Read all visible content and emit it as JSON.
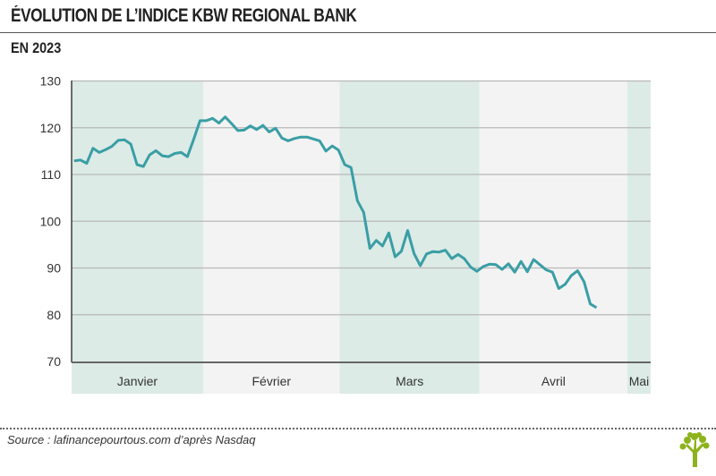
{
  "header": {
    "title": "ÉVOLUTION DE L’INDICE KBW REGIONAL BANK",
    "subtitle": "EN 2023"
  },
  "footer": {
    "source": "Source : lafinancepourtous.com d’après Nasdaq"
  },
  "colors": {
    "line": "#3a9ea5",
    "band_dark": "#dcebe6",
    "band_light": "#f3f3f3",
    "grid": "#b8b8b8",
    "logo": "#8db31c"
  },
  "chart_data": {
    "type": "line",
    "title": "ÉVOLUTION DE L’INDICE KBW REGIONAL BANK",
    "subtitle": "EN 2023",
    "xlabel": "",
    "ylabel": "",
    "ylim": [
      70,
      130
    ],
    "yticks": [
      70,
      80,
      90,
      100,
      110,
      120,
      130
    ],
    "grid": true,
    "x_unit": "trading day index",
    "xlim": [
      -0.4,
      91.6
    ],
    "months": [
      {
        "label": "Janvier",
        "start": -0.4,
        "end": 20.5,
        "shade": "dark"
      },
      {
        "label": "Février",
        "start": 20.5,
        "end": 42.2,
        "shade": "light"
      },
      {
        "label": "Mars",
        "start": 42.2,
        "end": 64.4,
        "shade": "dark"
      },
      {
        "label": "Avril",
        "start": 64.4,
        "end": 87.9,
        "shade": "light"
      },
      {
        "label": "Mai",
        "start": 87.9,
        "end": 91.6,
        "shade": "dark"
      }
    ],
    "series": [
      {
        "name": "KBW Regional Bank",
        "values": [
          112.9,
          113.1,
          112.4,
          115.6,
          114.7,
          115.3,
          116.0,
          117.3,
          117.4,
          116.5,
          112.1,
          111.7,
          114.2,
          115.1,
          114.0,
          113.8,
          114.5,
          114.7,
          113.8,
          117.5,
          121.5,
          121.5,
          122.0,
          121.0,
          122.3,
          120.9,
          119.4,
          119.5,
          120.4,
          119.6,
          120.5,
          119.1,
          119.9,
          117.8,
          117.2,
          117.7,
          118.0,
          118.0,
          117.6,
          117.2,
          115.0,
          116.1,
          115.2,
          112.1,
          111.5,
          104.4,
          101.9,
          94.2,
          95.9,
          94.7,
          97.5,
          92.4,
          93.6,
          98.0,
          93.1,
          90.5,
          93.0,
          93.5,
          93.4,
          93.8,
          92.0,
          92.9,
          92.0,
          90.2,
          89.3,
          90.3,
          90.8,
          90.7,
          89.7,
          90.9,
          89.1,
          91.4,
          89.2,
          91.8,
          90.7,
          89.6,
          89.1,
          85.6,
          86.5,
          88.4,
          89.4,
          87.1,
          82.3,
          81.5
        ]
      }
    ]
  }
}
